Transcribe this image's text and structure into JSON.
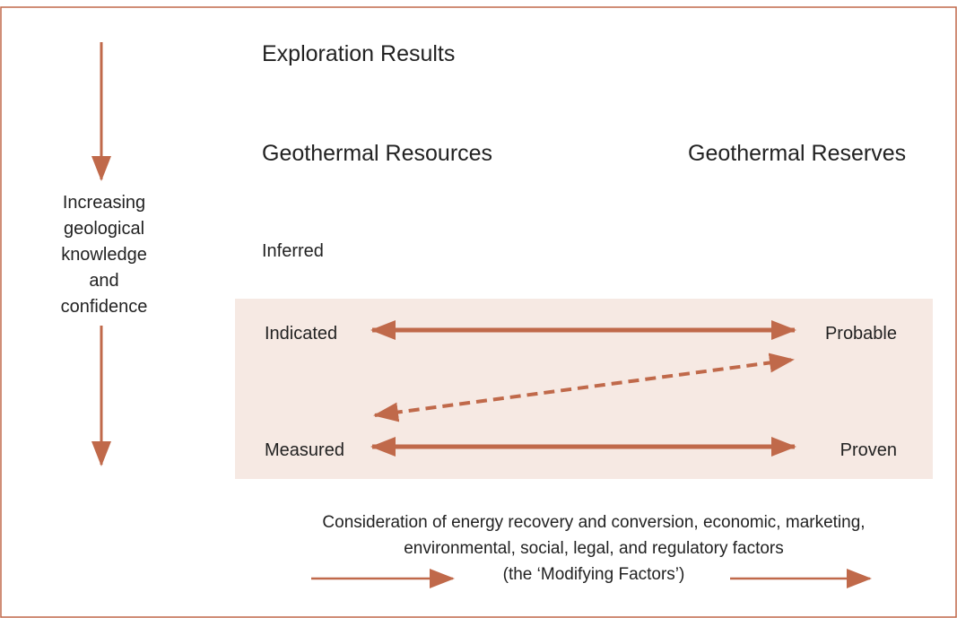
{
  "title": "Exploration Results",
  "resources": {
    "heading": "Geothermal Resources",
    "levels": [
      "Inferred",
      "Indicated",
      "Measured"
    ]
  },
  "reserves": {
    "heading": "Geothermal Reserves",
    "levels": [
      "Probable",
      "Proven"
    ]
  },
  "side_label": [
    "Increasing",
    "geological",
    "knowledge",
    "and",
    "confidence"
  ],
  "modifying_factors": [
    "Consideration of energy recovery and conversion, economic, marketing,",
    "environmental, social, legal, and regulatory factors",
    "(the ‘Modifying Factors’)"
  ]
}
